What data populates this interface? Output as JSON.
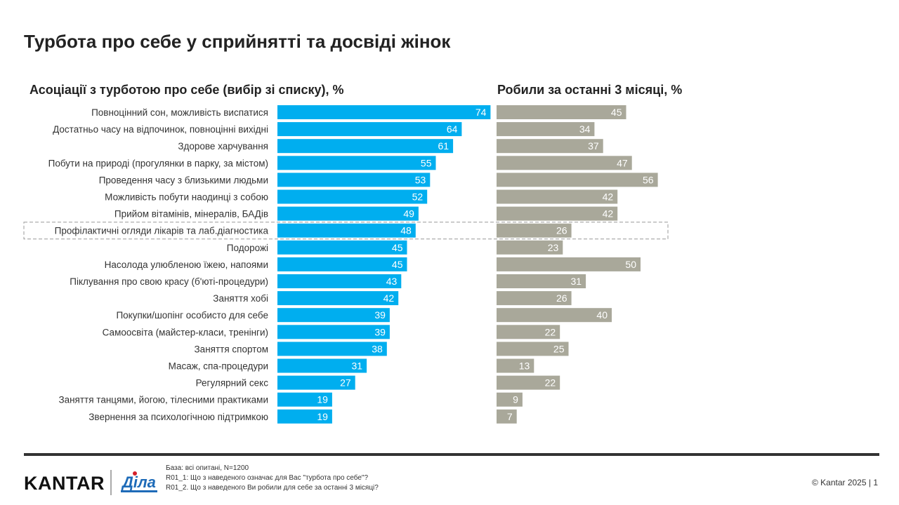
{
  "title": "Турбота про себе у сприйнятті та досвіді жінок",
  "footer": {
    "base": "База: всі опитані, N=1200",
    "q1": "R01_1: Що з наведеного означає для Вас \"турбота про себе\"?",
    "q2": "R01_2. Що з наведеного Ви робили для себе за останні 3 місяці?",
    "copyright": "© Kantar 2025 | 1",
    "logo_kantar": "KANTAR",
    "logo_dila": "Діла"
  },
  "chart_data": [
    {
      "type": "bar",
      "orientation": "horizontal",
      "title": "Асоціації з турботою про себе (вибір зі списку), %",
      "color": "#00aeef",
      "xlim": [
        0,
        100
      ],
      "categories": [
        "Повноцінний сон, можливість виспатися",
        "Достатньо часу на відпочинок, повноцінні вихідні",
        "Здорове харчування",
        "Побути на природі (прогулянки в парку, за містом)",
        "Проведення часу з близькими людьми",
        "Можливість побути наодинці з собою",
        "Прийом вітамінів, мінералів, БАДів",
        "Профілактичні огляди лікарів та лаб.діагностика",
        "Подорожі",
        "Насолода улюбленою їжею, напоями",
        "Піклування про свою красу (б'юті-процедури)",
        "Заняття хобі",
        "Покупки/шопінг особисто для себе",
        "Самоосвіта (майстер-класи, тренінги)",
        "Заняття спортом",
        "Масаж, спа-процедури",
        "Регулярний секс",
        "Заняття танцями, йогою, тілесними практиками",
        "Звернення за психологічною підтримкою"
      ],
      "values": [
        74,
        64,
        61,
        55,
        53,
        52,
        49,
        48,
        45,
        45,
        43,
        42,
        39,
        39,
        38,
        31,
        27,
        19,
        19
      ],
      "highlighted": "Профілактичні огляди лікарів та лаб.діагностика"
    },
    {
      "type": "bar",
      "orientation": "horizontal",
      "title": "Робили за останні 3 місяці, %",
      "color": "#a9a89a",
      "xlim": [
        0,
        100
      ],
      "values": [
        45,
        34,
        37,
        47,
        56,
        42,
        42,
        26,
        23,
        50,
        31,
        26,
        40,
        22,
        25,
        13,
        22,
        9,
        7
      ]
    }
  ]
}
